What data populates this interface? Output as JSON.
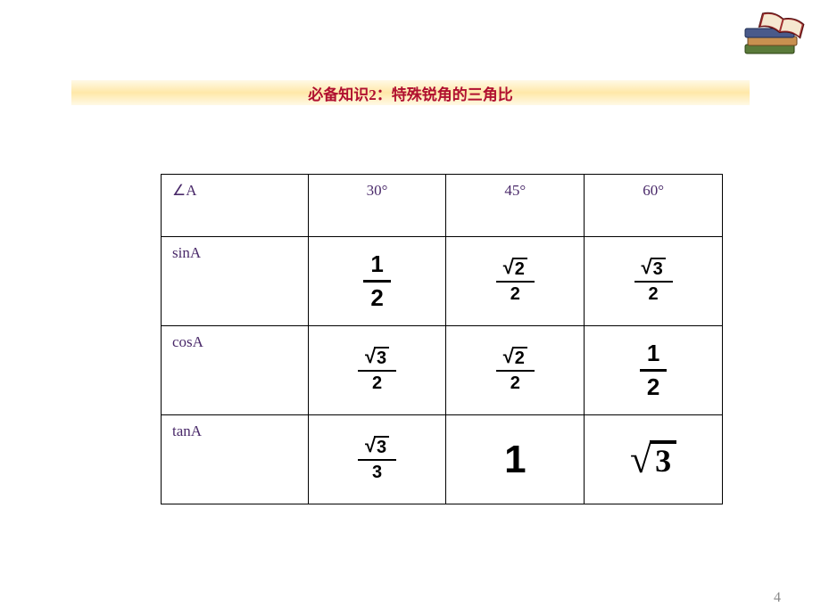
{
  "title": "必备知识2：特殊锐角的三角比",
  "page_number": "4",
  "colors": {
    "title_text": "#b01030",
    "title_bg_mid": "#ffe8a8",
    "title_bg_edge": "#fff9e6",
    "table_text": "#4a2a6a",
    "border": "#000000",
    "background": "#ffffff",
    "page_num": "#888888"
  },
  "table": {
    "header": {
      "row_label": "∠A",
      "angles": [
        "30°",
        "45°",
        "60°"
      ]
    },
    "rows": [
      {
        "label": "sinA",
        "cells": [
          {
            "display": "plain_frac",
            "num": "1",
            "den": "2",
            "size": "big"
          },
          {
            "display": "sqrt_frac",
            "num_sqrt": "2",
            "den": "2",
            "size": "med"
          },
          {
            "display": "sqrt_frac",
            "num_sqrt": "3",
            "den": "2",
            "size": "med"
          }
        ]
      },
      {
        "label": "cosA",
        "cells": [
          {
            "display": "sqrt_frac",
            "num_sqrt": "3",
            "den": "2",
            "size": "med"
          },
          {
            "display": "sqrt_frac",
            "num_sqrt": "2",
            "den": "2",
            "size": "med"
          },
          {
            "display": "plain_frac",
            "num": "1",
            "den": "2",
            "size": "big"
          }
        ]
      },
      {
        "label": "tanA",
        "cells": [
          {
            "display": "sqrt_frac",
            "num_sqrt": "3",
            "den": "3",
            "size": "med"
          },
          {
            "display": "plain",
            "text": "1",
            "style": "big-one"
          },
          {
            "display": "sqrt",
            "body": "3",
            "style": "big-sqrt"
          }
        ]
      }
    ]
  }
}
